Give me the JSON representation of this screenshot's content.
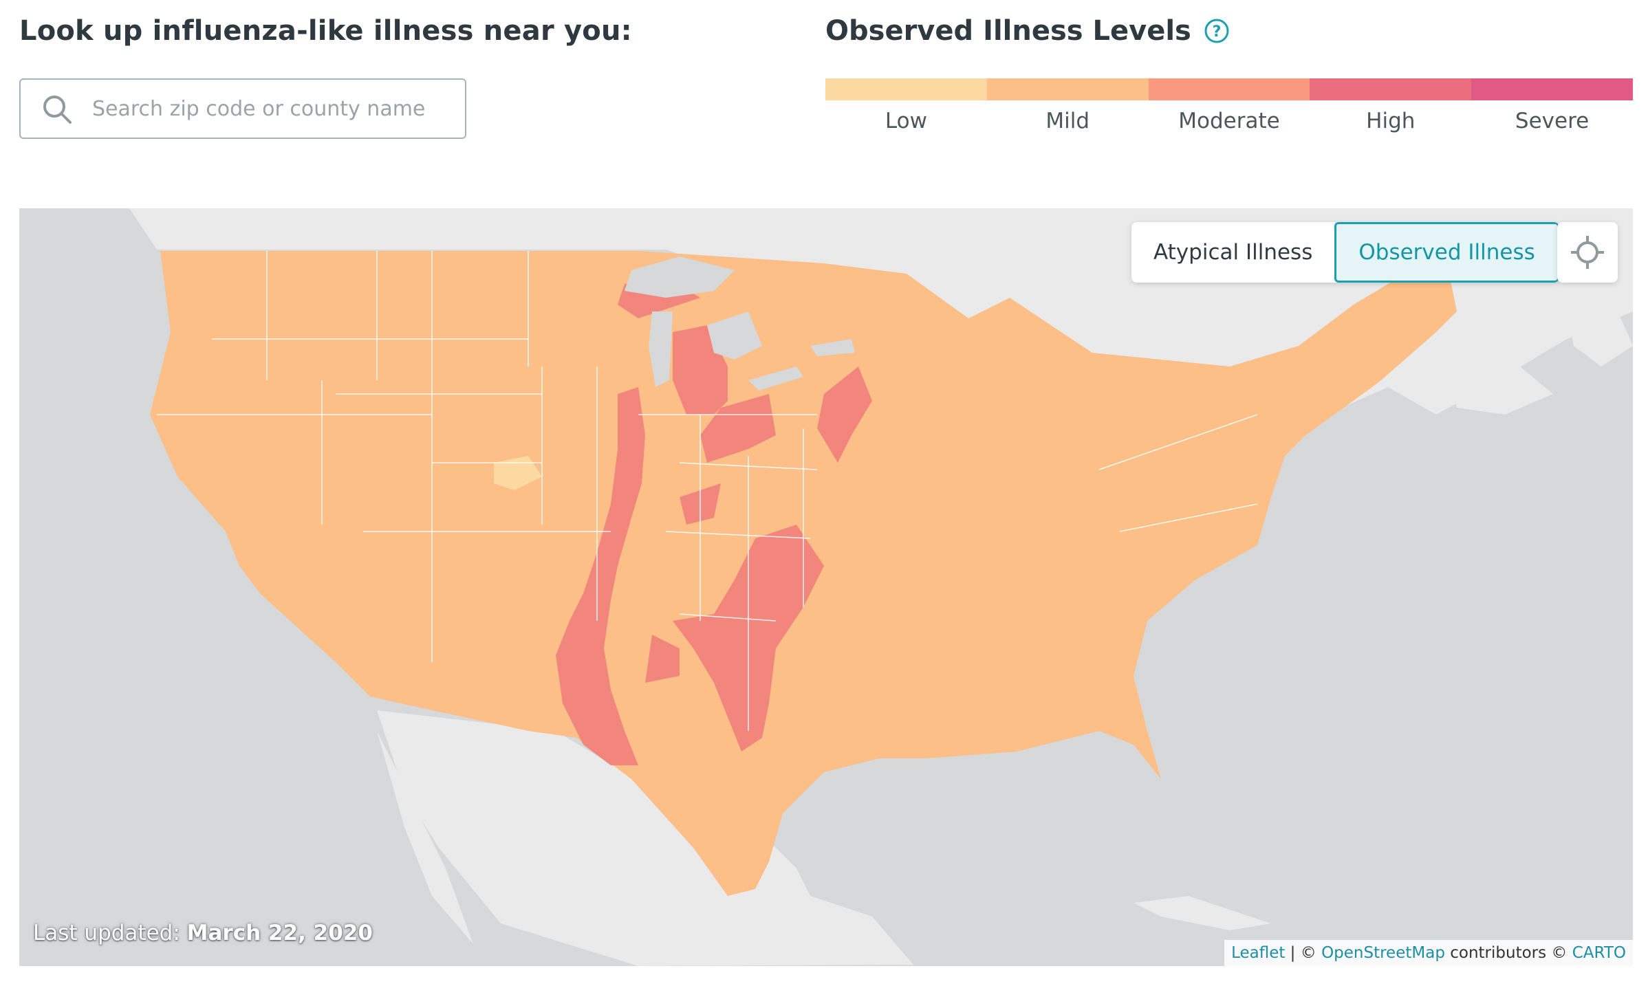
{
  "search": {
    "title": "Look up influenza-like illness near you:",
    "placeholder": "Search zip code or county name",
    "icon": "search-icon"
  },
  "legend": {
    "title": "Observed Illness Levels",
    "help_icon": "help-circle-icon",
    "levels": [
      {
        "label": "Low",
        "color": "#fcd9a0"
      },
      {
        "label": "Mild",
        "color": "#fcbf88"
      },
      {
        "label": "Moderate",
        "color": "#f99a80"
      },
      {
        "label": "High",
        "color": "#ea6e7d"
      },
      {
        "label": "Severe",
        "color": "#e15a86"
      }
    ]
  },
  "map": {
    "toggle": {
      "options": [
        "Atypical Illness",
        "Observed Illness"
      ],
      "selected": "Observed Illness"
    },
    "locate_icon": "crosshair-icon",
    "updated_prefix": "Last updated: ",
    "updated_date": "March 22, 2020",
    "attribution": {
      "leaflet": "Leaflet",
      "sep": " | © ",
      "osm": "OpenStreetMap",
      "contributors": " contributors © ",
      "carto": "CARTO"
    },
    "colors": {
      "water": "#d6d8d9",
      "land": "#eaeaea",
      "mild": "#fcbf88",
      "high": "#f2867c",
      "low": "#fcd9a0"
    }
  }
}
